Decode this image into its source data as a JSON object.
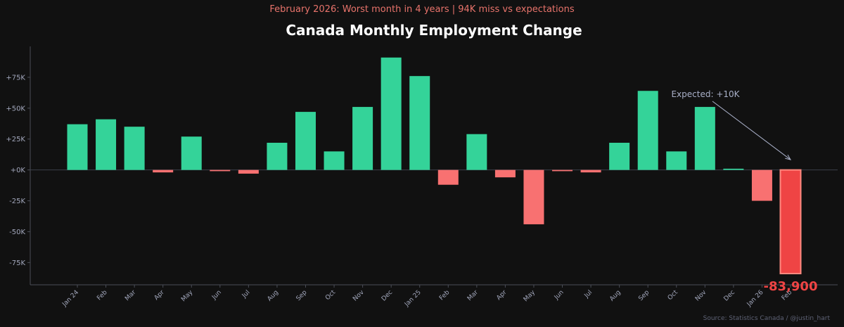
{
  "chart_data": {
    "type": "bar",
    "title": "Canada Monthly Employment Change",
    "subtitle": "February 2026: Worst month in 4 years | 94K miss vs expectations",
    "source": "Source: Statistics Canada / @justin_hart",
    "categories": [
      "Jan 24",
      "Feb",
      "Mar",
      "Apr",
      "May",
      "Jun",
      "Jul",
      "Aug",
      "Sep",
      "Oct",
      "Nov",
      "Dec",
      "Jan 25",
      "Feb",
      "Mar",
      "Apr",
      "May",
      "Jun",
      "Jul",
      "Aug",
      "Sep",
      "Oct",
      "Nov",
      "Dec",
      "Jan 26",
      "Feb"
    ],
    "values": [
      37000,
      41000,
      35000,
      -2000,
      27000,
      -1000,
      -3000,
      22000,
      47000,
      15000,
      51000,
      91000,
      76000,
      -12000,
      29000,
      -6000,
      -44000,
      -1000,
      -2000,
      22000,
      64000,
      15000,
      51000,
      1000,
      -25000,
      -83900
    ],
    "ylim": [
      -93000,
      100000
    ],
    "yticks": [
      -75000,
      -50000,
      -25000,
      0,
      25000,
      50000,
      75000
    ],
    "ytick_labels": [
      "-75K",
      "-50K",
      "-25K",
      "+0K",
      "+25K",
      "+50K",
      "+75K"
    ],
    "xlabel": "",
    "ylabel": "",
    "grid": false,
    "colors": {
      "positive": "#34d399",
      "negative": "#f87171",
      "highlight": "#ef4444",
      "highlight_edge": "#ff8a80",
      "zero_line": "#3b3f4a",
      "axis": "#4a4d57",
      "arrow": "#a9b0c8"
    },
    "annotations": {
      "expected_label": "Expected: +10K",
      "expected_value": 10000,
      "highlight_label": "-83,900"
    }
  }
}
